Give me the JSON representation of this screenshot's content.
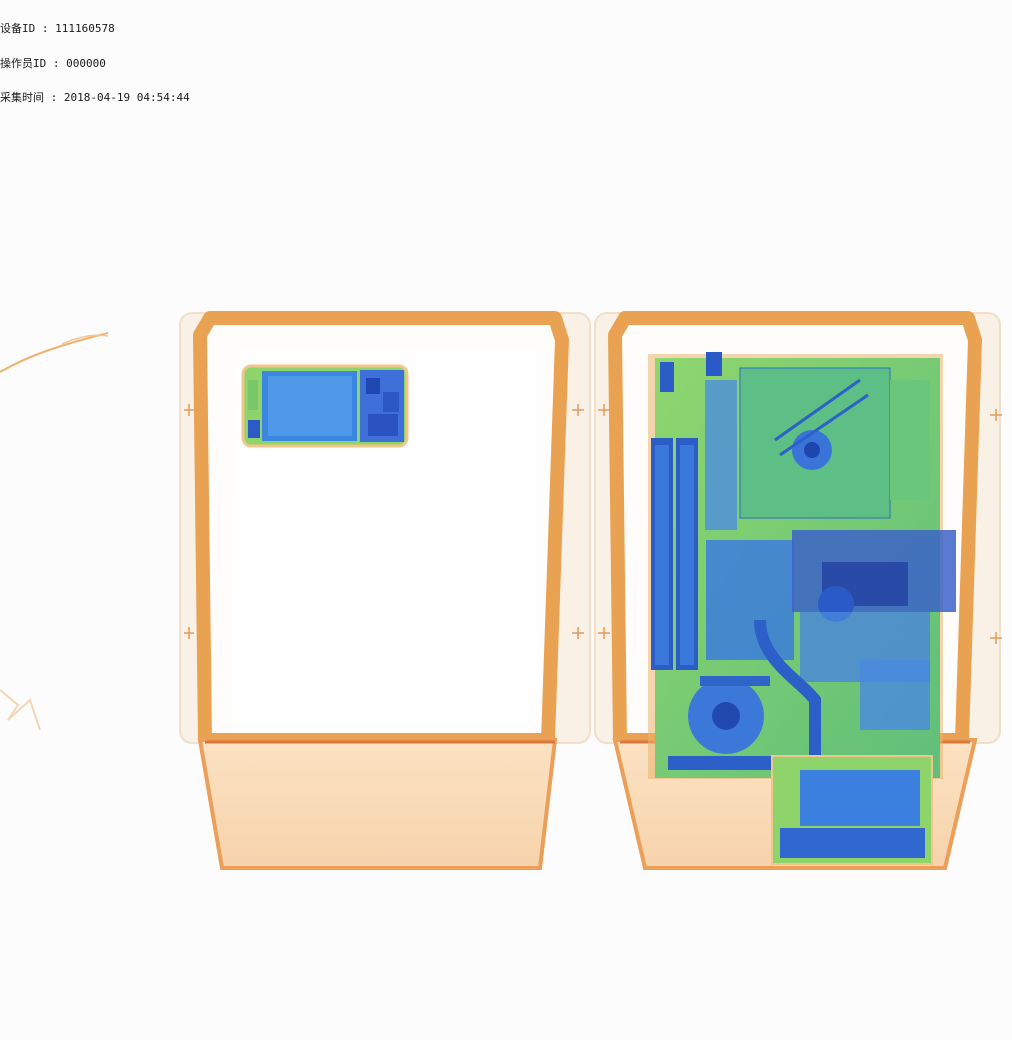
{
  "metadata": {
    "device_id": "设备ID : 111160578",
    "operator_id": "操作员ID : 000000",
    "capture_time": "采集时间 : 2018-04-19 04:54:44"
  },
  "palette": {
    "background": "#fcfcfc",
    "tray_orange": "#e8a04e",
    "tray_fill": "#fbe6cc",
    "organic_green": "#7fd06a",
    "metal_blue": "#2f6fe0",
    "dense_blue": "#1c4db8"
  }
}
